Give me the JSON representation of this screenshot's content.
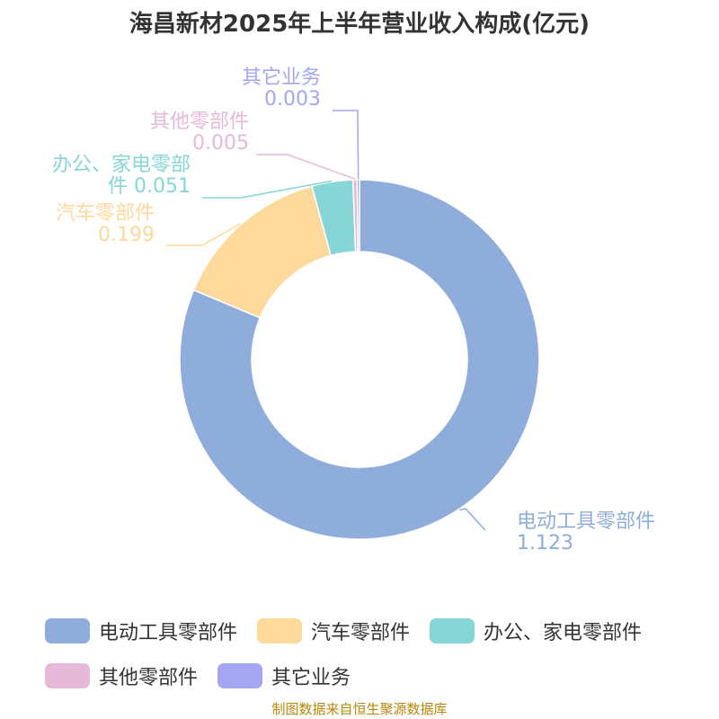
{
  "chart_data": {
    "type": "pie",
    "variant": "donut",
    "title": "海昌新材2025年上半年营业收入构成(亿元)",
    "unit": "亿元",
    "categories": [
      "电动工具零部件",
      "汽车零部件",
      "办公、家电零部件",
      "其他零部件",
      "其它业务"
    ],
    "values": [
      1.123,
      0.199,
      0.051,
      0.005,
      0.003
    ],
    "value_labels": [
      "1.123",
      "0.199",
      "0.051",
      "0.005",
      "0.003"
    ],
    "callout_lines": [
      [
        "电动工具零部件",
        "1.123"
      ],
      [
        "汽车零部件",
        "0.199"
      ],
      [
        "办公、家电零部",
        "件 0.051"
      ],
      [
        "其他零部件",
        "0.005"
      ],
      [
        "其它业务",
        "0.003"
      ]
    ],
    "colors": [
      "#8eaddb",
      "#fdd99b",
      "#86d6d8",
      "#e6b9d9",
      "#a4a6f2"
    ],
    "legend_position": "bottom"
  },
  "footer": "制图数据来自恒生聚源数据库"
}
